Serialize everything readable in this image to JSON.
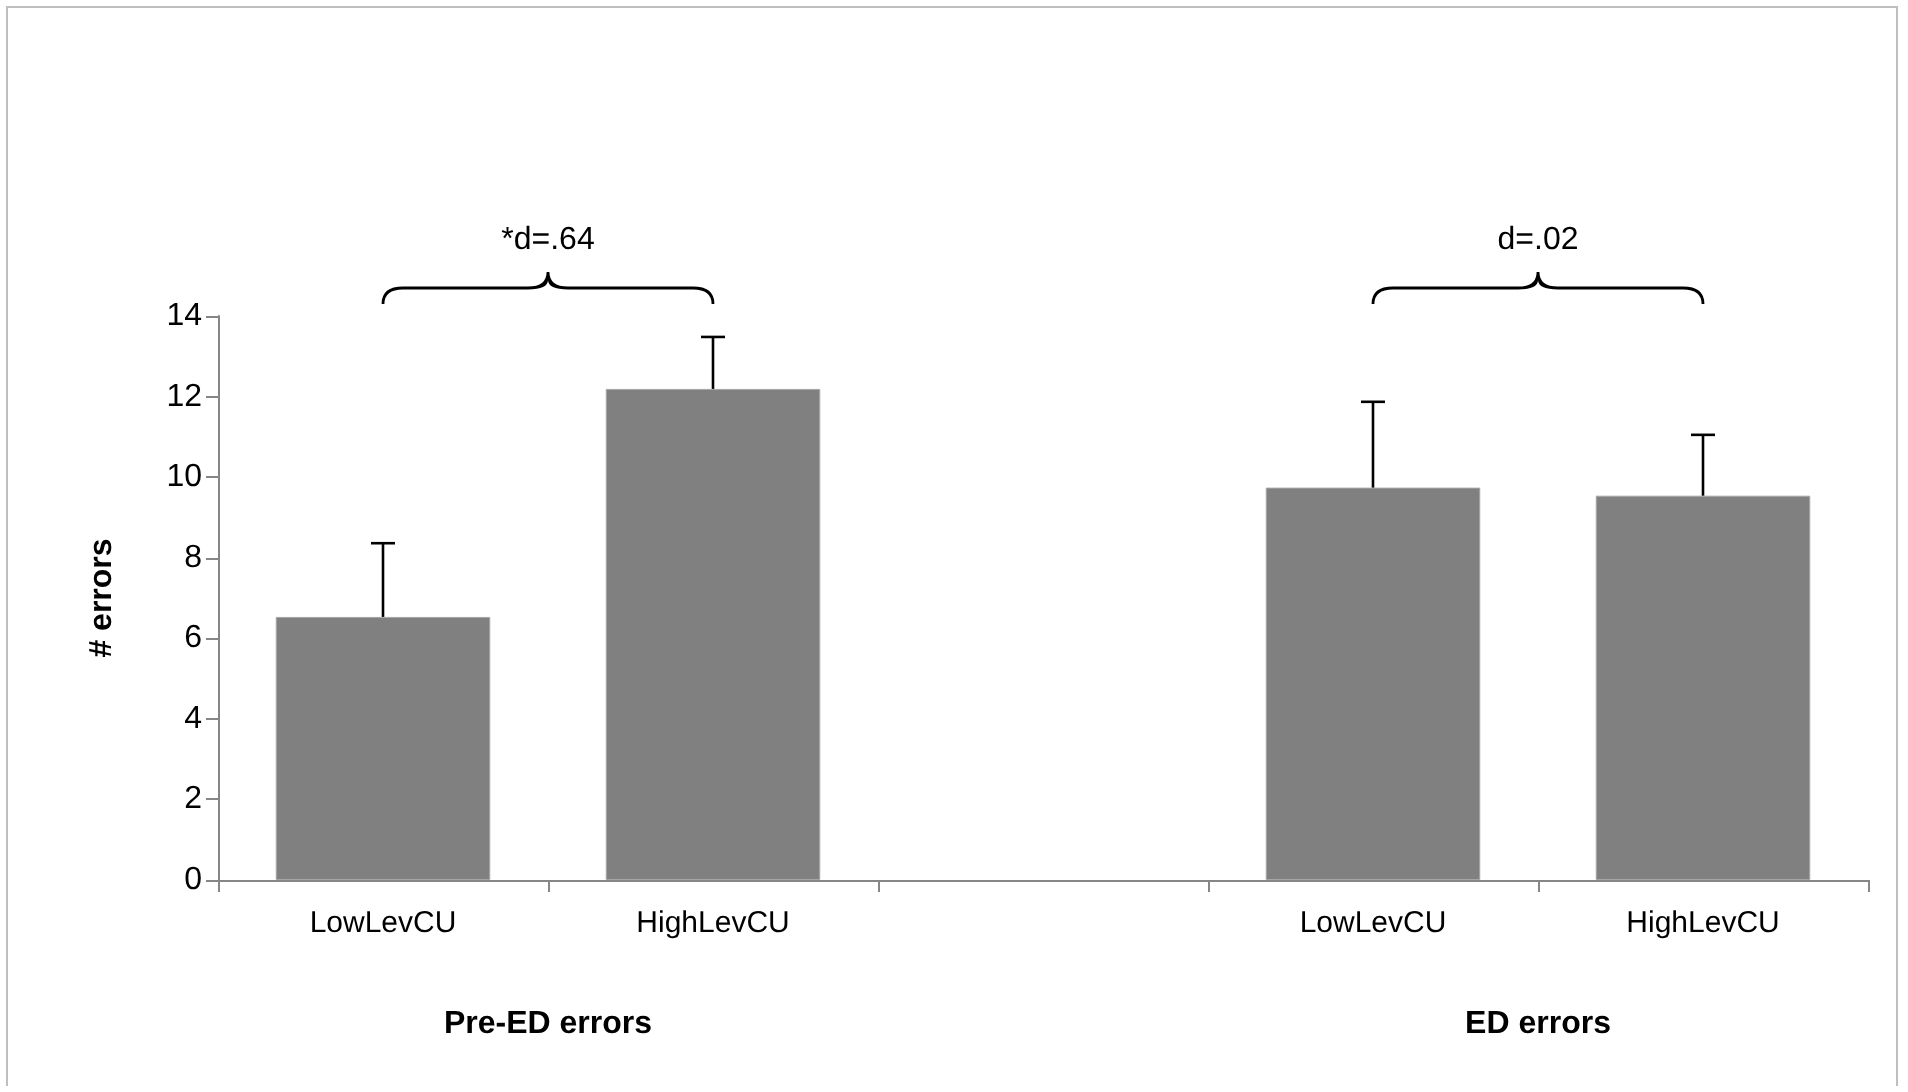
{
  "chart_data": {
    "type": "bar",
    "ylabel": "# errors",
    "categories": [
      "LowLevCU",
      "HighLevCU",
      null,
      "LowLevCU",
      "HighLevCU"
    ],
    "values": [
      6.53,
      12.19,
      null,
      9.74,
      9.54
    ],
    "errors": [
      [
        6.53,
        8.36
      ],
      [
        12.19,
        13.48
      ],
      null,
      [
        9.74,
        11.87
      ],
      [
        9.54,
        11.05
      ]
    ],
    "color": "#808080",
    "ylim": [
      0,
      14
    ],
    "yticks": [
      0,
      2,
      4,
      6,
      8,
      10,
      12,
      14
    ],
    "grid": false,
    "annotations": [
      "*d=.64",
      "d=.02",
      "Pre-ED errors",
      "ED errors"
    ]
  }
}
